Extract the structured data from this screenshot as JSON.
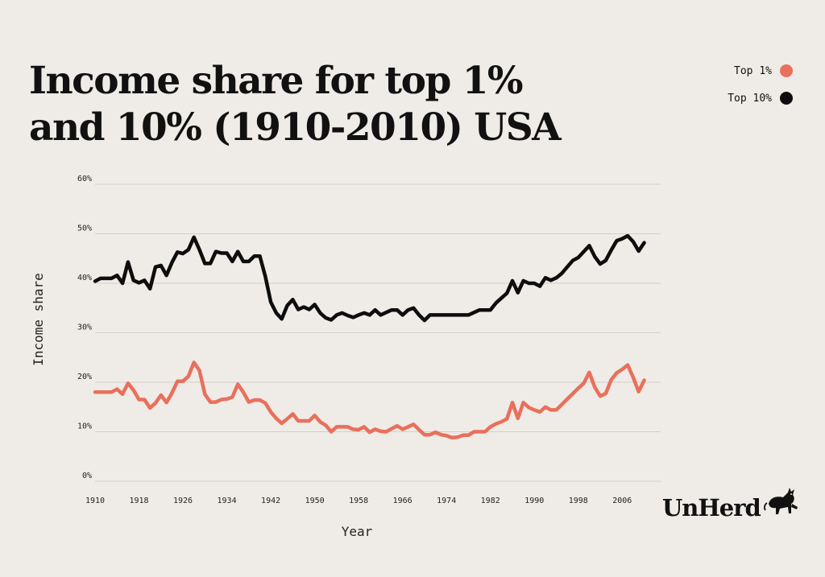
{
  "title_line1": "Income share for top 1%",
  "title_line2": "and 10% (1910-2010) USA",
  "legend": [
    {
      "label": "Top 1%",
      "color": "#e8705c"
    },
    {
      "label": "Top 10%",
      "color": "#0d0d0d"
    }
  ],
  "logo": {
    "text": "UnHerd",
    "icon": "bull-icon"
  },
  "chart_data": {
    "type": "line",
    "title": "Income share for top 1% and 10% (1910-2010) USA",
    "xlabel": "Year",
    "ylabel": "Income share",
    "xlim": [
      1910,
      2013
    ],
    "ylim": [
      0,
      60
    ],
    "x_ticks": [
      "1910",
      "1918",
      "1926",
      "1934",
      "1942",
      "1950",
      "1958",
      "1966",
      "1974",
      "1982",
      "1990",
      "1998",
      "2006"
    ],
    "y_ticks": [
      "0%",
      "10%",
      "20%",
      "30%",
      "40%",
      "50%",
      "60%"
    ],
    "grid": "horizontal",
    "legend_position": "top-right",
    "x": [
      1910,
      1911,
      1912,
      1913,
      1914,
      1915,
      1916,
      1917,
      1918,
      1919,
      1920,
      1921,
      1922,
      1923,
      1924,
      1925,
      1926,
      1927,
      1928,
      1929,
      1930,
      1931,
      1932,
      1933,
      1934,
      1935,
      1936,
      1937,
      1938,
      1939,
      1940,
      1941,
      1942,
      1943,
      1944,
      1945,
      1946,
      1947,
      1948,
      1949,
      1950,
      1951,
      1952,
      1953,
      1954,
      1955,
      1956,
      1957,
      1958,
      1959,
      1960,
      1961,
      1962,
      1963,
      1964,
      1965,
      1966,
      1967,
      1968,
      1969,
      1970,
      1971,
      1972,
      1973,
      1974,
      1975,
      1976,
      1977,
      1978,
      1979,
      1980,
      1981,
      1982,
      1983,
      1984,
      1985,
      1986,
      1987,
      1988,
      1989,
      1990,
      1991,
      1992,
      1993,
      1994,
      1995,
      1996,
      1997,
      1998,
      1999,
      2000,
      2001,
      2002,
      2003,
      2004,
      2005,
      2006,
      2007,
      2008,
      2009,
      2010
    ],
    "series": [
      {
        "name": "Top 1%",
        "color": "#e8705c",
        "values": [
          18.0,
          18.0,
          18.0,
          18.0,
          18.6,
          17.6,
          19.8,
          18.4,
          16.5,
          16.5,
          14.8,
          15.8,
          17.4,
          15.9,
          17.8,
          20.2,
          20.2,
          21.2,
          24.0,
          22.4,
          17.6,
          16.0,
          16.0,
          16.5,
          16.6,
          17.0,
          19.6,
          18.0,
          16.0,
          16.4,
          16.4,
          15.8,
          14.0,
          12.7,
          11.7,
          12.6,
          13.6,
          12.2,
          12.2,
          12.2,
          13.3,
          12.0,
          11.3,
          10.0,
          11.0,
          11.0,
          11.0,
          10.5,
          10.4,
          11.0,
          9.9,
          10.5,
          10.1,
          10.0,
          10.6,
          11.2,
          10.5,
          11.0,
          11.5,
          10.4,
          9.4,
          9.4,
          9.9,
          9.4,
          9.2,
          8.8,
          8.9,
          9.3,
          9.3,
          10.0,
          10.0,
          10.0,
          11.0,
          11.6,
          12.0,
          12.6,
          15.9,
          12.7,
          15.9,
          14.9,
          14.4,
          14.0,
          15.0,
          14.4,
          14.4,
          15.5,
          16.6,
          17.7,
          18.8,
          19.8,
          22.0,
          19.0,
          17.2,
          17.7,
          20.5,
          21.9,
          22.6,
          23.5,
          21.0,
          18.1,
          20.4
        ]
      },
      {
        "name": "Top 10%",
        "color": "#0d0d0d",
        "values": [
          40.4,
          41.0,
          41.0,
          41.0,
          41.6,
          40.0,
          44.3,
          40.6,
          40.1,
          40.6,
          38.9,
          43.3,
          43.6,
          41.6,
          44.2,
          46.3,
          46.0,
          46.8,
          49.3,
          46.8,
          44.0,
          44.0,
          46.4,
          46.1,
          46.1,
          44.4,
          46.4,
          44.4,
          44.4,
          45.5,
          45.5,
          41.4,
          36.2,
          34.0,
          32.8,
          35.5,
          36.7,
          34.7,
          35.2,
          34.7,
          35.7,
          34.0,
          33.0,
          32.6,
          33.6,
          34.0,
          33.5,
          33.1,
          33.6,
          34.0,
          33.6,
          34.6,
          33.6,
          34.1,
          34.6,
          34.6,
          33.6,
          34.6,
          35.0,
          33.6,
          32.5,
          33.6,
          33.6,
          33.6,
          33.6,
          33.6,
          33.6,
          33.6,
          33.6,
          34.1,
          34.6,
          34.6,
          34.6,
          36.0,
          37.0,
          38.0,
          40.5,
          38.1,
          40.5,
          40.0,
          40.0,
          39.4,
          41.1,
          40.6,
          41.1,
          42.0,
          43.3,
          44.6,
          45.2,
          46.4,
          47.6,
          45.4,
          43.9,
          44.6,
          46.7,
          48.6,
          49.0,
          49.6,
          48.4,
          46.5,
          48.2
        ]
      }
    ]
  }
}
